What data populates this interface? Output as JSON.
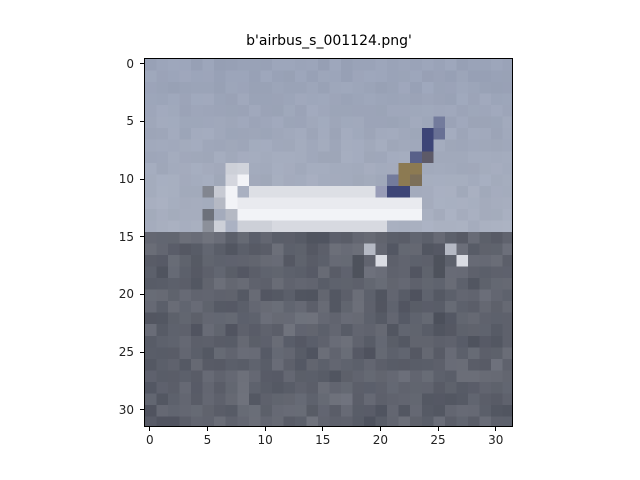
{
  "title": "b'airbus_s_001124.png'",
  "image": {
    "description_label": "airplane",
    "pixels_across": 32,
    "pixels_down": 32
  },
  "axes": {
    "x_ticks": [
      "0",
      "5",
      "10",
      "15",
      "20",
      "25",
      "30"
    ],
    "y_ticks": [
      "0",
      "5",
      "10",
      "15",
      "20",
      "25",
      "30"
    ],
    "x_tick_values": [
      0,
      5,
      10,
      15,
      20,
      25,
      30
    ],
    "y_tick_values": [
      0,
      5,
      10,
      15,
      20,
      25,
      30
    ],
    "xlim": [
      -0.5,
      31.5
    ],
    "ylim": [
      31.5,
      -0.5
    ]
  },
  "colors": {
    "sky_top": "#9aa3b8",
    "sky_horizon": "#a9b0c0",
    "ground": "#6b6e76",
    "ground_dark": "#4e525c",
    "plane_body": "#f2f3f7",
    "plane_shadow": "#b5b9c4",
    "tail_blue": "#3d4577",
    "tail_gold": "#8c7a52"
  }
}
